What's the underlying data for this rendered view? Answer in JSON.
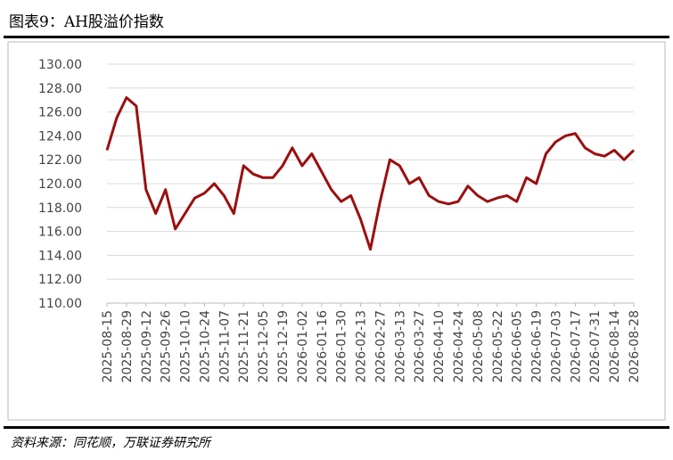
{
  "chart_data": {
    "type": "line",
    "title": "图表9：AH股溢价指数",
    "source": "资料来源：同花顺，万联证券研究所",
    "x": [
      "2025-08-15",
      "2025-08-22",
      "2025-08-29",
      "2025-09-05",
      "2025-09-12",
      "2025-09-19",
      "2025-09-26",
      "2025-10-03",
      "2025-10-10",
      "2025-10-17",
      "2025-10-24",
      "2025-10-31",
      "2025-11-07",
      "2025-11-14",
      "2025-11-21",
      "2025-11-28",
      "2025-12-05",
      "2025-12-12",
      "2025-12-19",
      "2025-12-26",
      "2026-01-02",
      "2026-01-09",
      "2026-01-16",
      "2026-01-23",
      "2026-01-30",
      "2026-02-06",
      "2026-02-13",
      "2026-02-20",
      "2026-02-27",
      "2026-03-06",
      "2026-03-13",
      "2026-03-20",
      "2026-03-27",
      "2026-04-03",
      "2026-04-10",
      "2026-04-17",
      "2026-04-24",
      "2026-05-01",
      "2026-05-08",
      "2026-05-15",
      "2026-05-22",
      "2026-05-29",
      "2026-06-05",
      "2026-06-12",
      "2026-06-19",
      "2026-06-26",
      "2026-07-03",
      "2026-07-10",
      "2026-07-17",
      "2026-07-24",
      "2026-07-31",
      "2026-08-07",
      "2026-08-14",
      "2026-08-21",
      "2026-08-28"
    ],
    "series": [
      {
        "name": "AH股溢价指数",
        "color": "#9b0f0f",
        "values": [
          122.8,
          125.5,
          127.2,
          126.5,
          119.5,
          117.5,
          119.5,
          116.2,
          117.5,
          118.8,
          119.2,
          120.0,
          119.0,
          117.5,
          121.5,
          120.8,
          120.5,
          120.5,
          121.5,
          123.0,
          121.5,
          122.5,
          121.0,
          119.5,
          118.5,
          119.0,
          117.0,
          114.5,
          118.5,
          122.0,
          121.5,
          120.0,
          120.5,
          119.0,
          118.5,
          118.3,
          118.5,
          119.8,
          119.0,
          118.5,
          118.8,
          119.0,
          118.5,
          120.5,
          120.0,
          122.5,
          123.5,
          124.0,
          124.2,
          123.0,
          122.5,
          122.3,
          122.8,
          122.0,
          122.8
        ]
      }
    ],
    "xlim": [
      "2025-08-15",
      "2026-08-28"
    ],
    "xticks": [
      "2025-08-15",
      "2025-08-29",
      "2025-09-12",
      "2025-09-26",
      "2025-10-10",
      "2025-10-24",
      "2025-11-07",
      "2025-11-21",
      "2025-12-05",
      "2025-12-19",
      "2026-01-02",
      "2026-01-16",
      "2026-01-30",
      "2026-02-13",
      "2026-02-27",
      "2026-03-13",
      "2026-03-27",
      "2026-04-10",
      "2026-04-24",
      "2026-05-08",
      "2026-05-22",
      "2026-06-05",
      "2026-06-19",
      "2026-07-03",
      "2026-07-17",
      "2026-07-31",
      "2026-08-14",
      "2026-08-28"
    ],
    "ylim": [
      110,
      130
    ],
    "yticks": [
      {
        "value": 110,
        "label": "110.00"
      },
      {
        "value": 112,
        "label": "112.00"
      },
      {
        "value": 114,
        "label": "114.00"
      },
      {
        "value": 116,
        "label": "116.00"
      },
      {
        "value": 118,
        "label": "118.00"
      },
      {
        "value": 120,
        "label": "120.00"
      },
      {
        "value": 122,
        "label": "122.00"
      },
      {
        "value": 124,
        "label": "124.00"
      },
      {
        "value": 126,
        "label": "126.00"
      },
      {
        "value": 128,
        "label": "128.00"
      },
      {
        "value": 130,
        "label": "130.00"
      }
    ],
    "grid": true
  }
}
